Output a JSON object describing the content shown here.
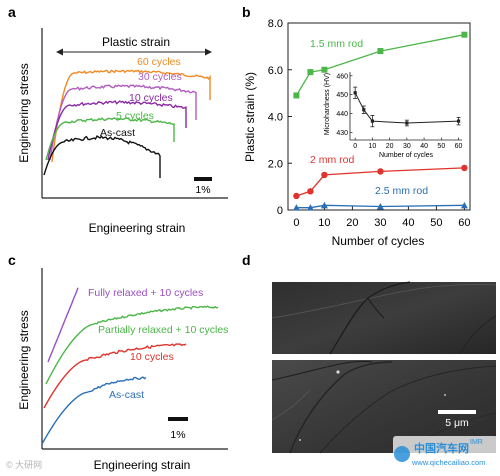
{
  "chart_data": [
    {
      "panel": "a",
      "type": "line",
      "xlabel": "Engineering strain",
      "ylabel": "Engineering stress",
      "annotation": "Plastic strain",
      "scale_bar": "1%",
      "series": [
        {
          "name": "60 cycles",
          "color": "#f08a24"
        },
        {
          "name": "30 cycles",
          "color": "#b15dbf"
        },
        {
          "name": "10 cycles",
          "color": "#8a2aa3"
        },
        {
          "name": "5 cycles",
          "color": "#4cb648"
        },
        {
          "name": "As-cast",
          "color": "#111111"
        }
      ]
    },
    {
      "panel": "b",
      "type": "line",
      "xlabel": "Number of cycles",
      "ylabel": "Plastic strain (%)",
      "xlim": [
        -3,
        62
      ],
      "ylim": [
        0,
        8
      ],
      "xticks": [
        "0",
        "10",
        "20",
        "30",
        "40",
        "50",
        "60"
      ],
      "yticks": [
        "0",
        "2.0",
        "4.0",
        "6.0",
        "8.0"
      ],
      "series": [
        {
          "name": "1.5 mm rod",
          "color": "#4cb648",
          "x": [
            0,
            5,
            10,
            30,
            60
          ],
          "y": [
            4.9,
            5.9,
            6.0,
            6.8,
            7.5
          ]
        },
        {
          "name": "2 mm rod",
          "color": "#e0332d",
          "x": [
            0,
            5,
            10,
            30,
            60
          ],
          "y": [
            0.6,
            0.8,
            1.5,
            1.65,
            1.8
          ]
        },
        {
          "name": "2.5 mm rod",
          "color": "#2a6fb5",
          "x": [
            0,
            5,
            10,
            30,
            60
          ],
          "y": [
            0.1,
            0.1,
            0.2,
            0.15,
            0.2
          ]
        }
      ],
      "inset": {
        "xlabel": "Number of cycles",
        "ylabel": "Microhardness (HV)",
        "xticks": [
          "0",
          "10",
          "20",
          "30",
          "40",
          "50",
          "60"
        ],
        "yticks": [
          "430",
          "440",
          "450",
          "460"
        ],
        "xlim": [
          -3,
          62
        ],
        "ylim": [
          426,
          462
        ],
        "x": [
          0,
          5,
          10,
          30,
          60
        ],
        "y": [
          451,
          442,
          436,
          435,
          436
        ],
        "err": [
          3,
          2,
          3,
          1.5,
          2
        ]
      }
    },
    {
      "panel": "c",
      "type": "line",
      "xlabel": "Engineering strain",
      "ylabel": "Engineering stress",
      "scale_bar": "1%",
      "series": [
        {
          "name": "Fully relaxed + 10 cycles",
          "color": "#9b4fc3"
        },
        {
          "name": "Partially relaxed + 10 cycles",
          "color": "#4cb648"
        },
        {
          "name": "10 cycles",
          "color": "#e0332d"
        },
        {
          "name": "As-cast",
          "color": "#2a6fb5"
        }
      ]
    }
  ],
  "panel_d": {
    "letter": "d",
    "scale_bar": "5 μm"
  },
  "watermark": {
    "left": "© 大研网",
    "right_top": "中国汽车网",
    "right_url": "www.qichecailiao.com",
    "right_extra": "IMR"
  }
}
